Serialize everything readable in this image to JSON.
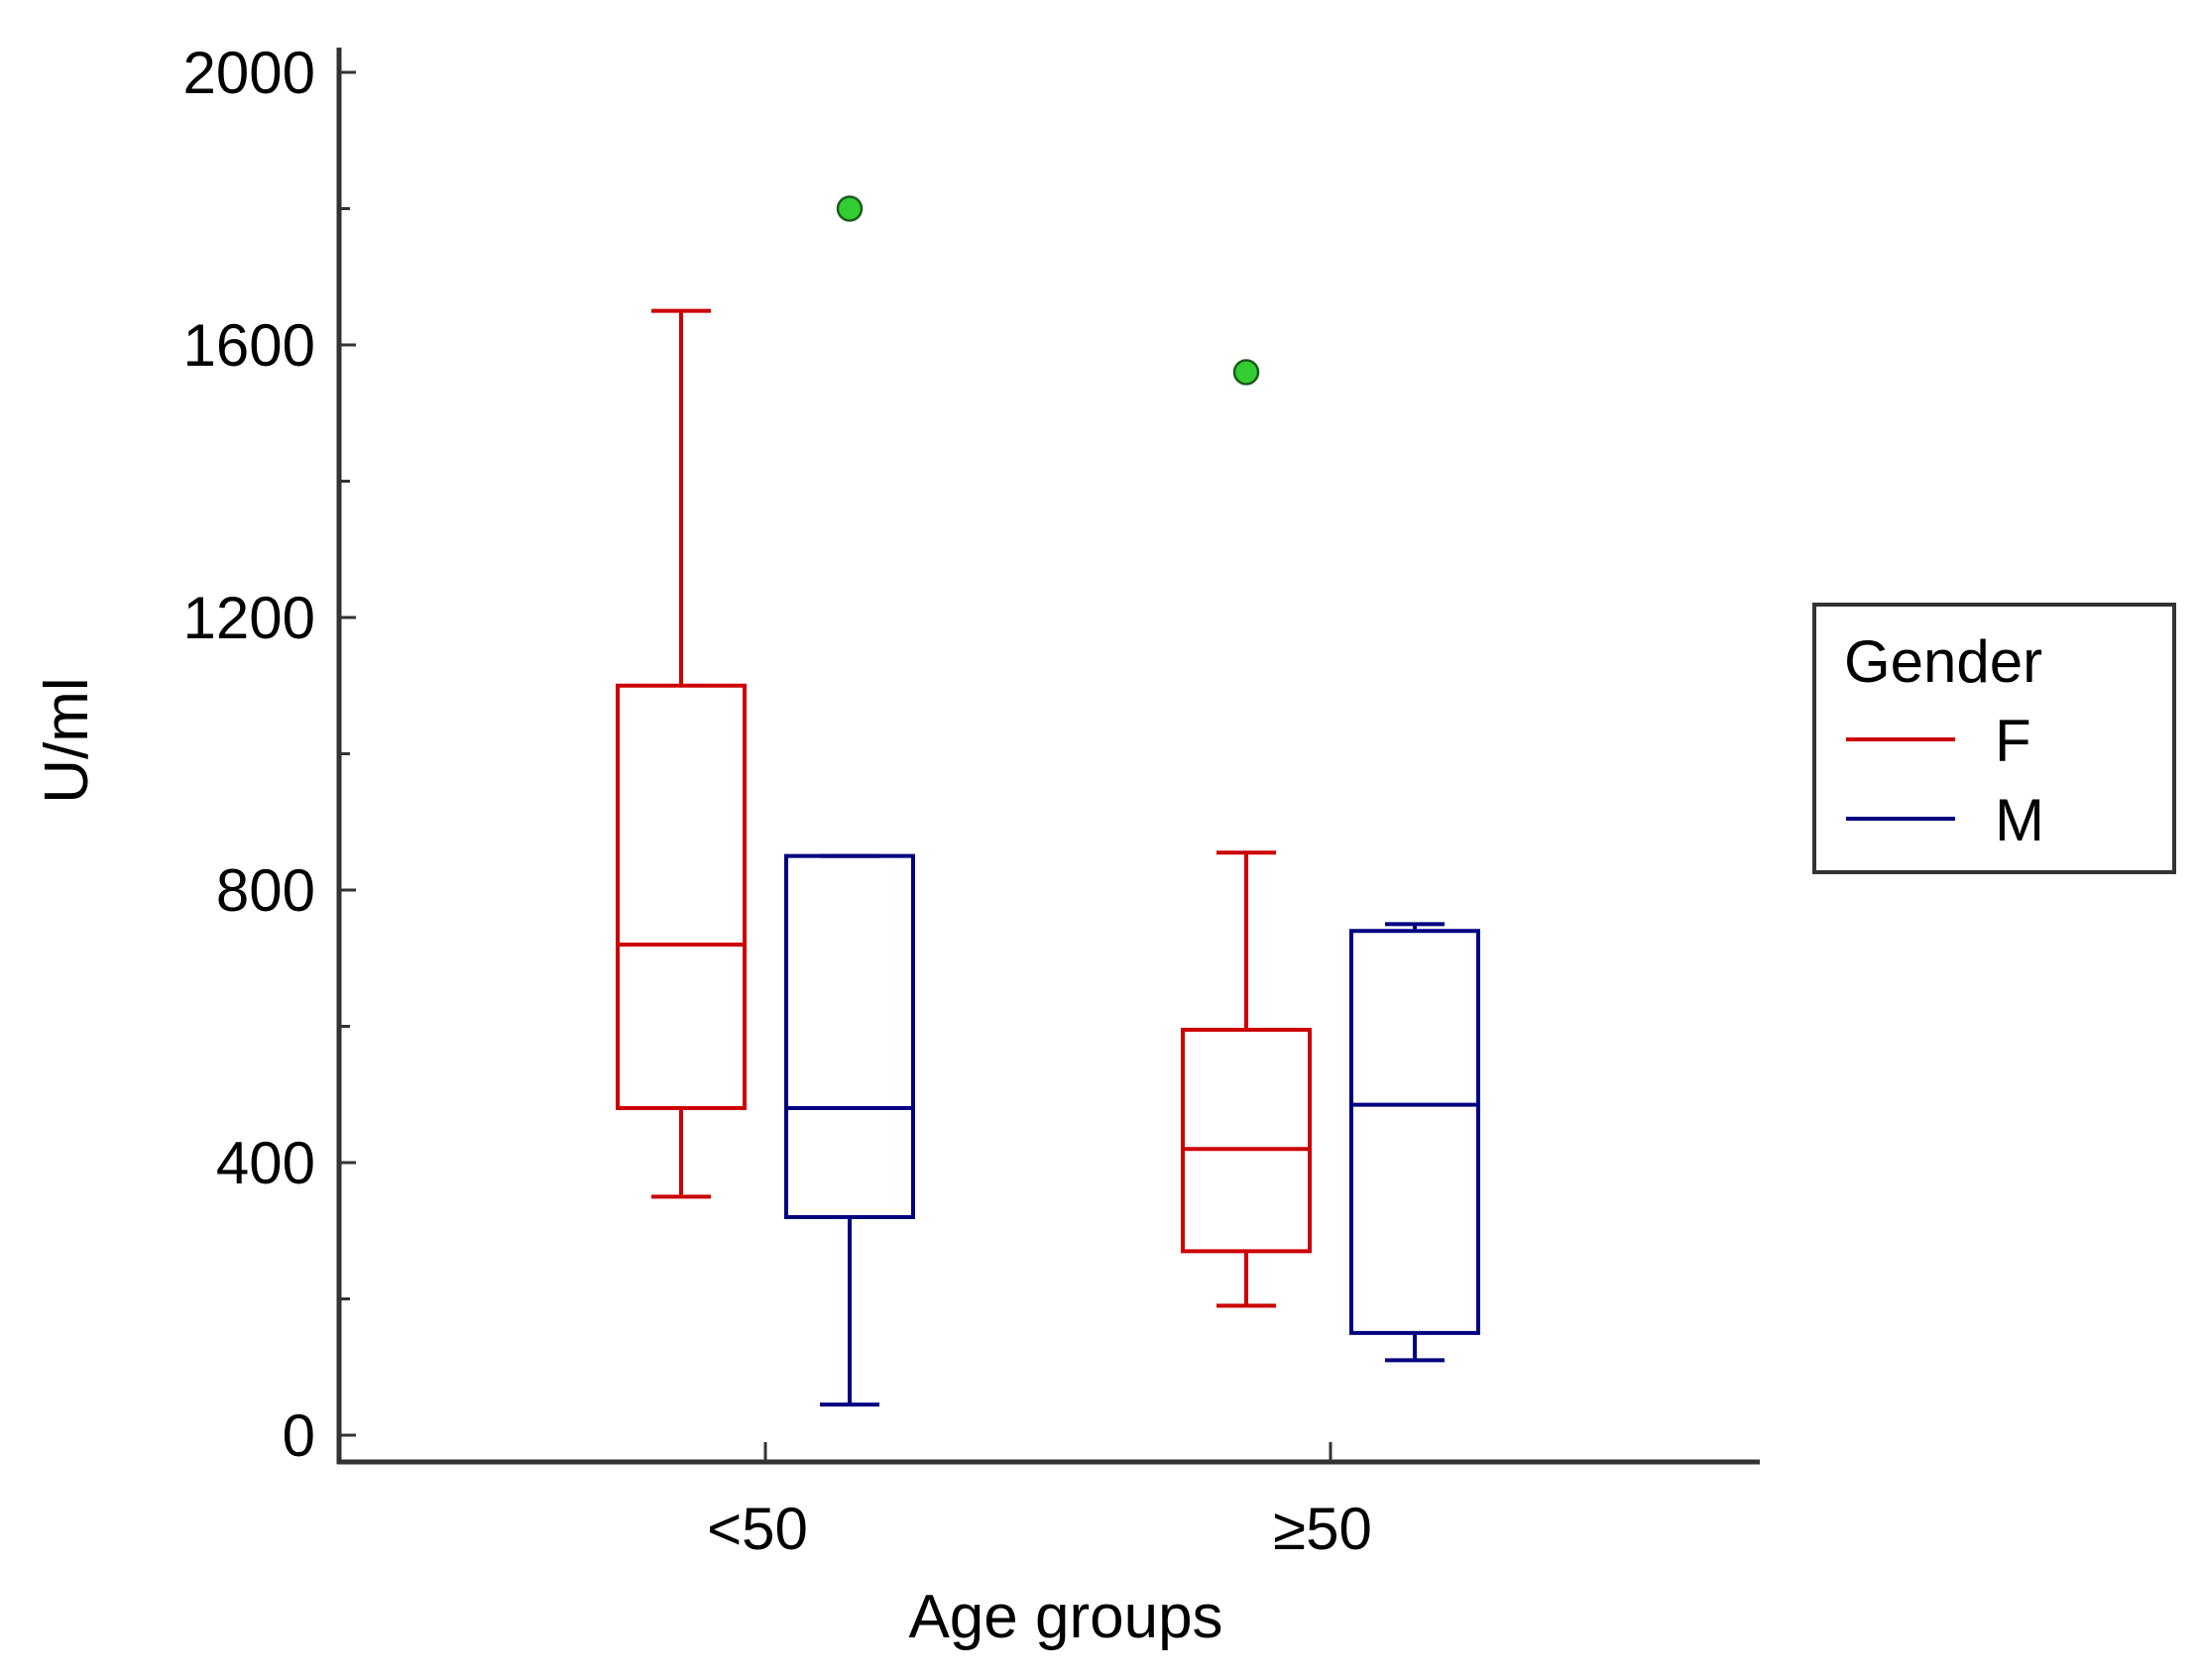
{
  "chart_data": {
    "type": "boxplot",
    "title": "",
    "xlabel": "Age groups",
    "ylabel": "U/ml",
    "categories": [
      "<50",
      "≥50"
    ],
    "ylim": [
      -40,
      2040
    ],
    "yticks_major": [
      0,
      400,
      800,
      1200,
      1600,
      2000
    ],
    "yticks_major_labels": [
      "0",
      "400",
      "800",
      "1200",
      "1600",
      "2000"
    ],
    "yticks_minor": [
      200,
      600,
      1000,
      1400,
      1800
    ],
    "grid": false,
    "legend": {
      "title": "Gender",
      "position": "right",
      "entries": [
        {
          "label": "F",
          "color": "#cc0000"
        },
        {
          "label": "M",
          "color": "#000080"
        }
      ]
    },
    "outlier_color": "#33cc33",
    "series": [
      {
        "name": "F",
        "color": "#cc0000",
        "boxes": [
          {
            "category": "<50",
            "whisker_low": 350,
            "q1": 480,
            "median": 720,
            "q3": 1100,
            "whisker_high": 1650,
            "outliers": []
          },
          {
            "category": "≥50",
            "whisker_low": 190,
            "q1": 270,
            "median": 420,
            "q3": 595,
            "whisker_high": 855,
            "outliers": [
              1560
            ]
          }
        ]
      },
      {
        "name": "M",
        "color": "#000080",
        "boxes": [
          {
            "category": "<50",
            "whisker_low": 45,
            "q1": 320,
            "median": 480,
            "q3": 850,
            "whisker_high": 850,
            "outliers": [
              1800
            ]
          },
          {
            "category": "≥50",
            "whisker_low": 110,
            "q1": 150,
            "median": 485,
            "q3": 740,
            "whisker_high": 750,
            "outliers": []
          }
        ]
      }
    ]
  }
}
